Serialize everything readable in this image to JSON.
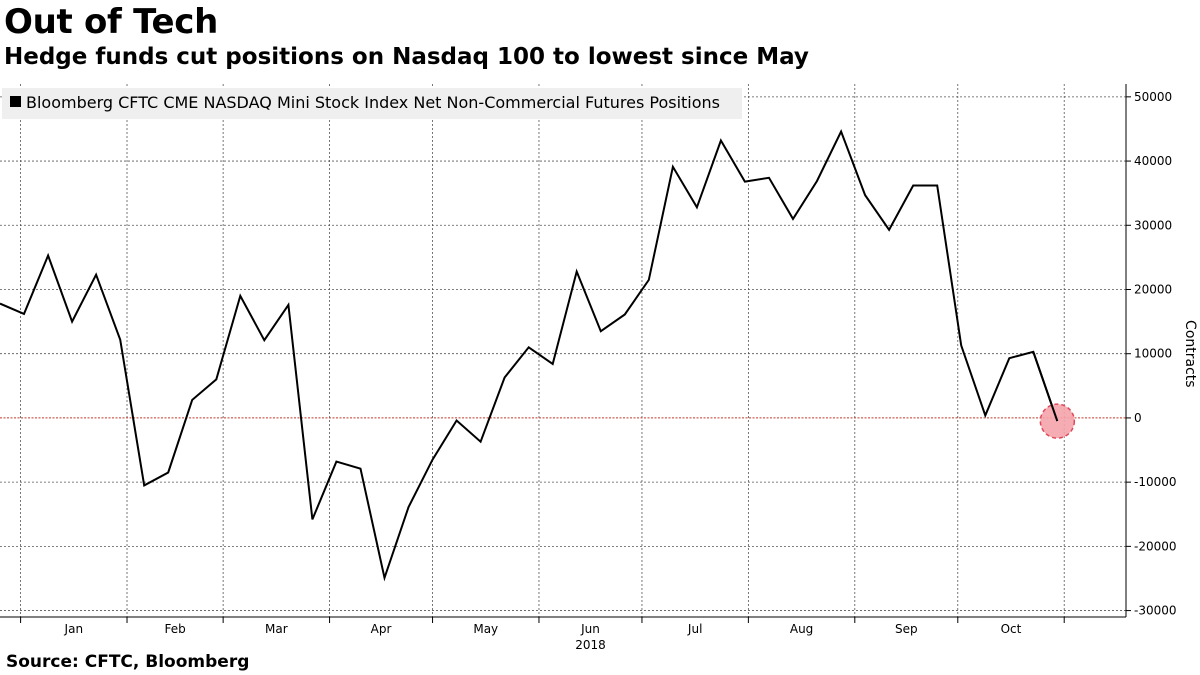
{
  "header": {
    "title": "Out of Tech",
    "subtitle": "Hedge funds cut positions on Nasdaq 100 to lowest since May"
  },
  "footer": {
    "source": "Source: CFTC, Bloomberg"
  },
  "colors": {
    "line": "#000000",
    "zero_line": "#c0392b",
    "highlight_fill": "#f5a3ab",
    "highlight_stroke": "#e0485a",
    "legend_bg": "#efefef",
    "grid": "#555555"
  },
  "chart_data": {
    "type": "line",
    "title": "Out of Tech",
    "subtitle": "Hedge funds cut positions on Nasdaq 100 to lowest since May",
    "xlabel": "2018",
    "ylabel": "Contracts",
    "ylim": [
      -30000,
      50000
    ],
    "yticks": [
      50000,
      40000,
      30000,
      20000,
      10000,
      0,
      -10000,
      -20000,
      -30000
    ],
    "ytick_labels": [
      "50000",
      "40000",
      "30000",
      "20000",
      "10000",
      "0",
      "-10000",
      "-20000",
      "-30000"
    ],
    "xticks": [
      "Jan",
      "Feb",
      "Mar",
      "Apr",
      "May",
      "Jun",
      "Jul",
      "Aug",
      "Sep",
      "Oct"
    ],
    "year_label": "2018",
    "grid": true,
    "legend_position": "top-left",
    "y_axis_side": "right",
    "series": [
      {
        "name": "Bloomberg CFTC CME NASDAQ Mini Stock Index Net Non-Commercial Futures Positions",
        "x": [
          "2017-12-26",
          "2018-01-02",
          "2018-01-09",
          "2018-01-16",
          "2018-01-23",
          "2018-01-30",
          "2018-02-06",
          "2018-02-13",
          "2018-02-20",
          "2018-02-27",
          "2018-03-06",
          "2018-03-13",
          "2018-03-20",
          "2018-03-27",
          "2018-04-03",
          "2018-04-10",
          "2018-04-17",
          "2018-04-24",
          "2018-05-01",
          "2018-05-08",
          "2018-05-15",
          "2018-05-22",
          "2018-05-29",
          "2018-06-05",
          "2018-06-12",
          "2018-06-19",
          "2018-06-26",
          "2018-07-03",
          "2018-07-10",
          "2018-07-17",
          "2018-07-24",
          "2018-07-31",
          "2018-08-07",
          "2018-08-14",
          "2018-08-21",
          "2018-08-28",
          "2018-09-04",
          "2018-09-11",
          "2018-09-18",
          "2018-09-25",
          "2018-10-02",
          "2018-10-09",
          "2018-10-16",
          "2018-10-23",
          "2018-10-30"
        ],
        "values": [
          17800,
          16200,
          25300,
          15000,
          22300,
          12200,
          -10500,
          -8500,
          2800,
          6000,
          19000,
          12100,
          17600,
          -15800,
          -6800,
          -7900,
          -24900,
          -13900,
          -6500,
          -400,
          -3700,
          6300,
          11000,
          8400,
          22800,
          13500,
          16100,
          21500,
          39100,
          32800,
          43200,
          36800,
          37400,
          31000,
          36900,
          44600,
          34700,
          29300,
          36200,
          36200,
          11300,
          400,
          9300,
          10300,
          -500
        ]
      }
    ],
    "annotations": [
      {
        "type": "circle-highlight",
        "target": "last-point",
        "note": ""
      }
    ]
  }
}
